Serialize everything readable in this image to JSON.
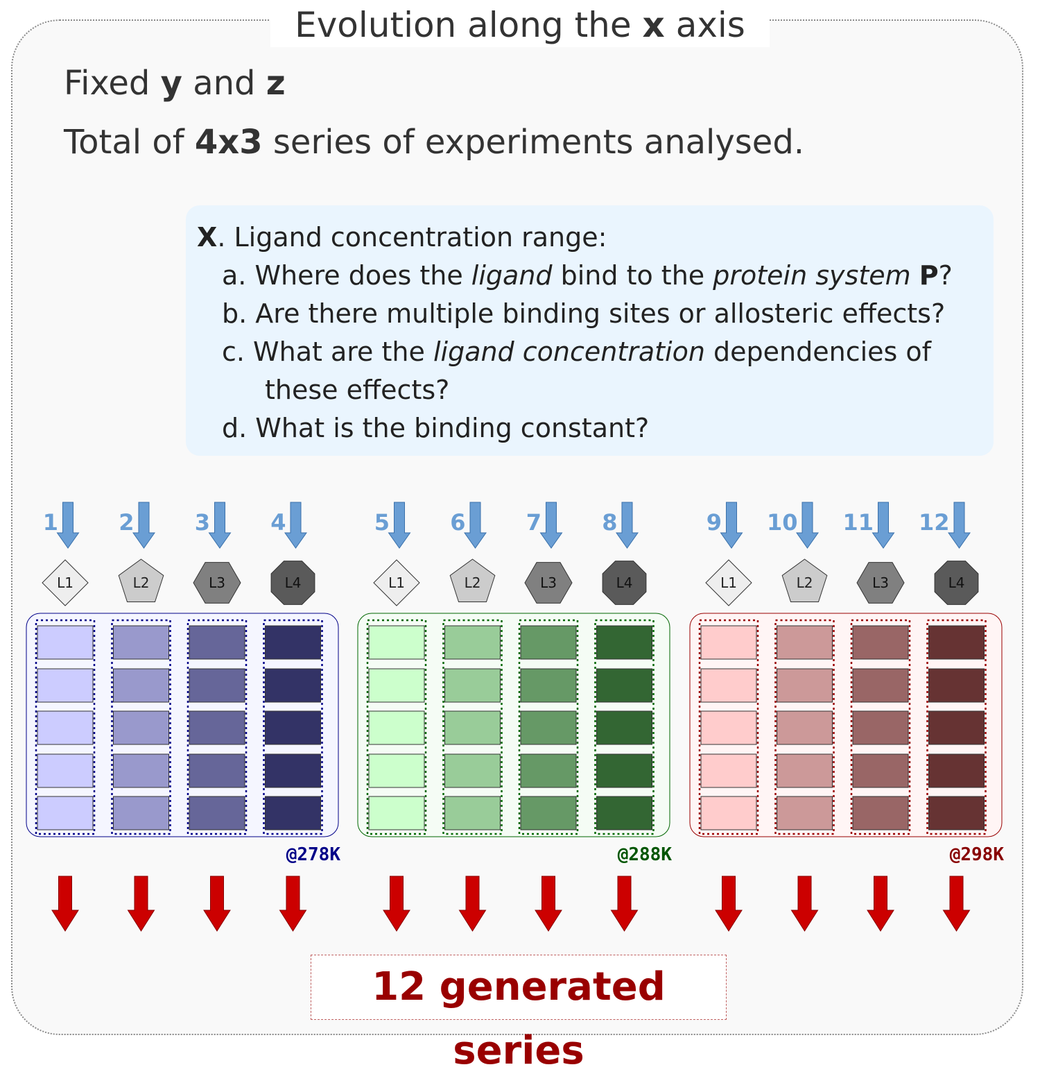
{
  "title": {
    "prefix": "Evolution along the ",
    "axis": "x",
    "suffix": " axis"
  },
  "intro": {
    "line1": {
      "prefix": "Fixed ",
      "y": "y",
      "and": " and ",
      "z": "z"
    },
    "line2": {
      "prefix": "Total of ",
      "count": "4x3",
      "suffix": " series of experiments analysed."
    }
  },
  "questions": {
    "heading": {
      "label": "X",
      "text": ". Ligand concentration range:"
    },
    "a": {
      "p1": "a. Where does the ",
      "ligand": "ligand",
      "p2": " bind to the ",
      "system": "protein system",
      "space": " ",
      "P": "P",
      "q": "?"
    },
    "b": "b. Are there multiple binding sites or allosteric effects?",
    "c": {
      "p1": "c. What are the ",
      "em": "ligand concentration",
      "p2": " dependencies of",
      "cont": "these effects?"
    },
    "d": "d. What is the binding constant?"
  },
  "series_numbers": [
    "1",
    "2",
    "3",
    "4",
    "5",
    "6",
    "7",
    "8",
    "9",
    "10",
    "11",
    "12"
  ],
  "ligands": [
    {
      "label": "L1",
      "icon": "diamond-icon",
      "fill": "#eeeeee"
    },
    {
      "label": "L2",
      "icon": "pentagon-icon",
      "fill": "#cccccc"
    },
    {
      "label": "L3",
      "icon": "hexagon-icon",
      "fill": "#808080"
    },
    {
      "label": "L4",
      "icon": "octagon-icon",
      "fill": "#5a5a5a"
    }
  ],
  "temperatures": [
    {
      "label": "@278K",
      "color": "#000088",
      "panel_bg": "#f5f6ff",
      "border": "#000088",
      "cell_colors": [
        "#ccccff",
        "#9999cc",
        "#666699",
        "#333366"
      ]
    },
    {
      "label": "@288K",
      "color": "#005500",
      "panel_bg": "#f5fcf5",
      "border": "#006600",
      "cell_colors": [
        "#ccffcc",
        "#99cc99",
        "#669966",
        "#336633"
      ]
    },
    {
      "label": "@298K",
      "color": "#880000",
      "panel_bg": "#fff5f5",
      "border": "#990000",
      "cell_colors": [
        "#ffcccc",
        "#cc9999",
        "#996666",
        "#663333"
      ]
    }
  ],
  "rows_per_column": 5,
  "arrow_colors": {
    "input": "#6a9ed4",
    "output": "#cc0000"
  },
  "result": "12 generated series"
}
